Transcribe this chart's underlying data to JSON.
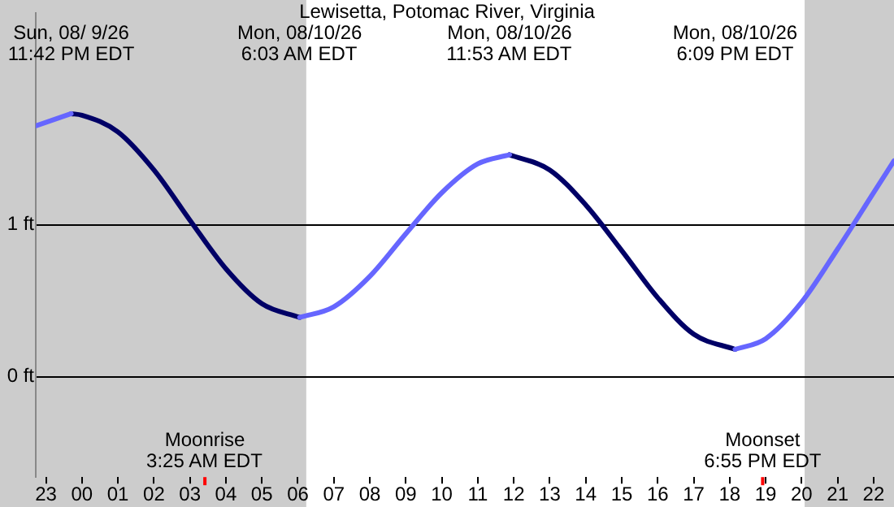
{
  "chart_data": {
    "type": "line",
    "title": "Lewisetta, Potomac River, Virginia",
    "xlim": [
      "--08-09T22:43",
      "--08-10T22:34"
    ],
    "xticks": [
      {
        "value": "--08-09T23:00",
        "label": "23"
      },
      {
        "value": "--08-10T00:00",
        "label": "00"
      },
      {
        "value": "--08-10T01:00",
        "label": "01"
      },
      {
        "value": "--08-10T02:00",
        "label": "02"
      },
      {
        "value": "--08-10T03:00",
        "label": "03"
      },
      {
        "value": "--08-10T04:00",
        "label": "04"
      },
      {
        "value": "--08-10T05:00",
        "label": "05"
      },
      {
        "value": "--08-10T06:00",
        "label": "06"
      },
      {
        "value": "--08-10T07:00",
        "label": "07"
      },
      {
        "value": "--08-10T08:00",
        "label": "08"
      },
      {
        "value": "--08-10T09:00",
        "label": "09"
      },
      {
        "value": "--08-10T10:00",
        "label": "10"
      },
      {
        "value": "--08-10T11:00",
        "label": "11"
      },
      {
        "value": "--08-10T12:00",
        "label": "12"
      },
      {
        "value": "--08-10T13:00",
        "label": "13"
      },
      {
        "value": "--08-10T14:00",
        "label": "14"
      },
      {
        "value": "--08-10T15:00",
        "label": "15"
      },
      {
        "value": "--08-10T16:00",
        "label": "16"
      },
      {
        "value": "--08-10T17:00",
        "label": "17"
      },
      {
        "value": "--08-10T18:00",
        "label": "18"
      },
      {
        "value": "--08-10T19:00",
        "label": "19"
      },
      {
        "value": "--08-10T20:00",
        "label": "20"
      },
      {
        "value": "--08-10T21:00",
        "label": "21"
      },
      {
        "value": "--08-10T22:00",
        "label": "22"
      }
    ],
    "x2lim": [
      "--08-09T22:43",
      "--08-10T22:34"
    ],
    "x2ticks": [
      {
        "value": "--08-09T23:42",
        "label": "Sun, 08/ 9/26\n11:42 PM EDT"
      },
      {
        "value": "--08-10T06:03",
        "label": "Mon, 08/10/26\n6:03 AM EDT"
      },
      {
        "value": "--08-10T11:53",
        "label": "Mon, 08/10/26\n11:53 AM EDT"
      },
      {
        "value": "--08-10T18:09",
        "label": "Mon, 08/10/26\n6:09 PM EDT"
      }
    ],
    "ylim": [
      -0.66,
      2.39
    ],
    "yticks": [
      {
        "value": 0,
        "label": "0 ft"
      },
      {
        "value": 1,
        "label": "1 ft"
      }
    ],
    "grid": "y",
    "legend": false,
    "marker": "none",
    "line_style": "solid",
    "series": [
      {
        "color": "#6666ff",
        "x": [
          "--08-09T22:43",
          "--08-09T23:42",
          "--08-10T03:00",
          "--08-10T06:03",
          "--08-10T07:00",
          "--08-10T08:00",
          "--08-10T09:00",
          "--08-10T10:00",
          "--08-10T11:00",
          "--08-10T11:53",
          "--08-10T15:00",
          "--08-10T18:09",
          "--08-10T19:00",
          "--08-10T20:00",
          "--08-10T21:00",
          "--08-10T22:00",
          "--08-10T22:34"
        ],
        "values": [
          1.65,
          1.73,
          null,
          0.39,
          0.46,
          0.66,
          0.94,
          1.21,
          1.4,
          1.46,
          null,
          0.18,
          0.25,
          0.49,
          0.84,
          1.21,
          1.42
        ]
      },
      {
        "color": "#000066",
        "x": [
          "--08-09T23:42",
          "--08-10T00:00",
          "--08-10T01:00",
          "--08-10T02:00",
          "--08-10T03:00",
          "--08-10T04:00",
          "--08-10T05:00",
          "--08-10T06:03",
          "--08-10T09:00",
          "--08-10T11:53",
          "--08-10T13:00",
          "--08-10T14:00",
          "--08-10T15:00",
          "--08-10T16:00",
          "--08-10T17:00",
          "--08-10T18:09"
        ],
        "values": [
          1.73,
          1.72,
          1.61,
          1.36,
          1.03,
          0.71,
          0.48,
          0.39,
          null,
          1.46,
          1.36,
          1.13,
          0.83,
          0.52,
          0.28,
          0.18
        ]
      }
    ],
    "bands": [
      {
        "axis": "x",
        "from": "--08-09T22:43",
        "to": "--08-10T06:14",
        "color": "#cccccc"
      },
      {
        "axis": "x",
        "from": "--08-10T20:05",
        "to": "--08-10T22:34",
        "color": "#cccccc"
      }
    ],
    "ref_lines": [
      {
        "axis": "x",
        "value": "--08-10T03:25",
        "label": "Moonrise\n3:25 AM EDT",
        "color": "#ff0000"
      },
      {
        "axis": "x",
        "value": "--08-10T18:55",
        "label": "Moonset\n6:55 PM EDT",
        "color": "#ff0000"
      }
    ]
  }
}
